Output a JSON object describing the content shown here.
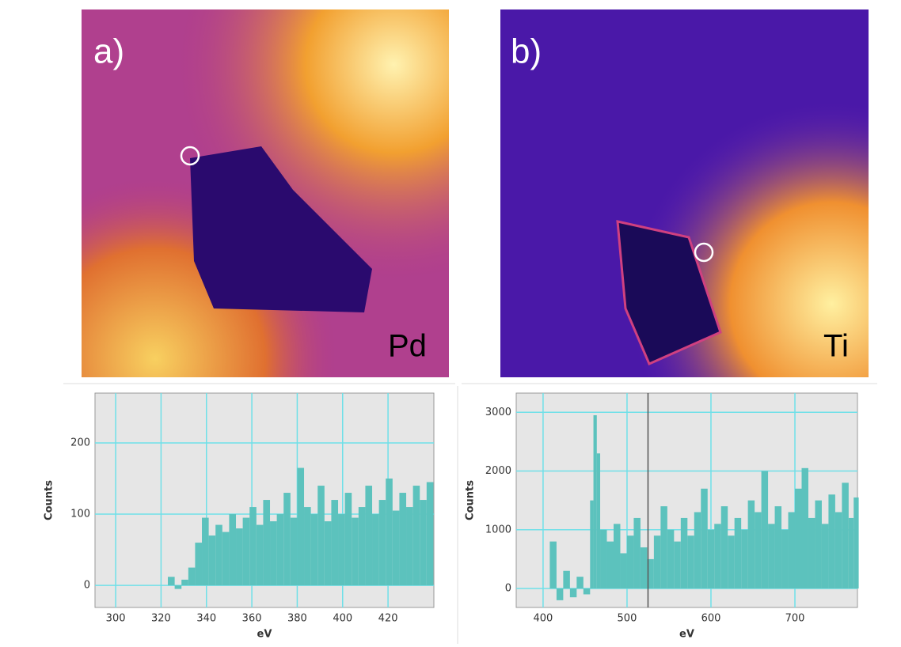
{
  "panels": [
    {
      "label": "a)",
      "element": "Pd"
    },
    {
      "label": "b)",
      "element": "Ti"
    }
  ],
  "chart_data": [
    {
      "type": "bar",
      "x_label": "eV",
      "y_label": "Counts",
      "color": "#5cc2bd",
      "grid": true,
      "xlim": [
        290.9,
        440.2
      ],
      "ylim": [
        -31,
        270
      ],
      "xticks": [
        300,
        320,
        340,
        360,
        380,
        400,
        420
      ],
      "yticks": [
        0,
        100,
        200
      ],
      "x": [
        323,
        326,
        329,
        332,
        335,
        338,
        341,
        344,
        347,
        350,
        353,
        356,
        359,
        362,
        365,
        368,
        371,
        374,
        377,
        380,
        383,
        386,
        389,
        392,
        395,
        398,
        401,
        404,
        407,
        410,
        413,
        416,
        419,
        422,
        425,
        428,
        431,
        434,
        437
      ],
      "values": [
        12,
        -5,
        8,
        25,
        60,
        95,
        70,
        85,
        75,
        100,
        80,
        95,
        110,
        85,
        120,
        90,
        100,
        130,
        95,
        165,
        110,
        100,
        140,
        90,
        120,
        100,
        130,
        95,
        110,
        140,
        100,
        120,
        150,
        105,
        130,
        110,
        140,
        120,
        145
      ]
    },
    {
      "type": "bar",
      "x_label": "eV",
      "y_label": "Counts",
      "color": "#5cc2bd",
      "grid": true,
      "xlim": [
        368,
        774.5
      ],
      "ylim": [
        -323,
        3327
      ],
      "xticks": [
        400,
        500,
        600,
        700
      ],
      "yticks": [
        0,
        1000,
        2000,
        3000
      ],
      "cursor": 525,
      "x": [
        408,
        416,
        424,
        432,
        440,
        448,
        456,
        460,
        464,
        468,
        476,
        484,
        492,
        500,
        508,
        516,
        524,
        532,
        540,
        548,
        556,
        564,
        572,
        580,
        588,
        596,
        604,
        612,
        620,
        628,
        636,
        644,
        652,
        660,
        668,
        676,
        684,
        692,
        700,
        708,
        716,
        724,
        732,
        740,
        748,
        756,
        764,
        770
      ],
      "values": [
        800,
        -200,
        300,
        -150,
        200,
        -100,
        1500,
        2950,
        2300,
        1000,
        800,
        1100,
        600,
        900,
        1200,
        700,
        500,
        900,
        1400,
        1000,
        800,
        1200,
        900,
        1300,
        1700,
        1000,
        1100,
        1400,
        900,
        1200,
        1000,
        1500,
        1300,
        2000,
        1100,
        1400,
        1000,
        1300,
        1700,
        2050,
        1200,
        1500,
        1100,
        1600,
        1300,
        1800,
        1200,
        1550
      ]
    }
  ]
}
